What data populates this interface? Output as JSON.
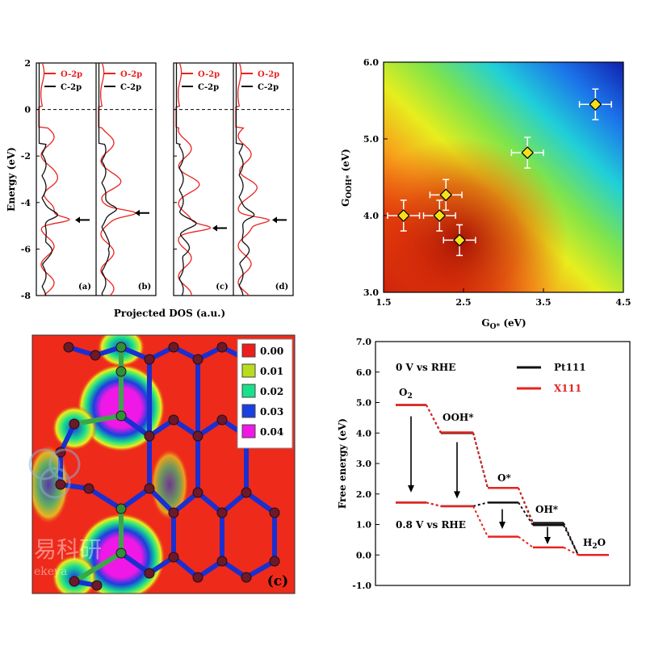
{
  "chart_data": [
    {
      "type": "line",
      "panel": "projected-dos",
      "xlabel": "Projected DOS (a.u.)",
      "ylabel": "Energy (eV)",
      "ylim": [
        -8,
        2
      ],
      "yticks": [
        "2",
        "0",
        "-2",
        "-4",
        "-6",
        "-8"
      ],
      "fermi_level": 0,
      "legend": [
        "O-2p",
        "C-2p"
      ],
      "series_colors": {
        "O-2p": "#e8231f",
        "C-2p": "#111111"
      },
      "subpanels": [
        {
          "label": "(a)",
          "arrow_energy": -4.75
        },
        {
          "label": "(b)",
          "arrow_energy": -4.45
        },
        {
          "label": "(c)",
          "arrow_energy": -5.1
        },
        {
          "label": "(d)",
          "arrow_energy": -4.75
        }
      ]
    },
    {
      "type": "scatter",
      "panel": "activity-map",
      "xlabel": "G",
      "xlabel_sub": "O*",
      "xlabel_unit": " (eV)",
      "ylabel": "G",
      "ylabel_sub": "OOH*",
      "ylabel_unit": " (eV)",
      "xlim": [
        1.5,
        4.5
      ],
      "ylim": [
        3.0,
        6.0
      ],
      "xticks": [
        "1.5",
        "2.5",
        "3.5",
        "4.5"
      ],
      "yticks": [
        "3.0",
        "4.0",
        "5.0",
        "6.0"
      ],
      "points": [
        {
          "x": 1.75,
          "y": 4.0,
          "xerr": 0.2,
          "yerr": 0.2
        },
        {
          "x": 2.2,
          "y": 4.0,
          "xerr": 0.2,
          "yerr": 0.2
        },
        {
          "x": 2.28,
          "y": 4.27,
          "xerr": 0.2,
          "yerr": 0.2
        },
        {
          "x": 2.45,
          "y": 3.68,
          "xerr": 0.2,
          "yerr": 0.2
        },
        {
          "x": 3.3,
          "y": 4.82,
          "xerr": 0.2,
          "yerr": 0.2
        },
        {
          "x": 4.15,
          "y": 5.45,
          "xerr": 0.2,
          "yerr": 0.2
        }
      ],
      "marker_color": "#f5e11a"
    },
    {
      "type": "heatmap",
      "panel": "density-map",
      "legend": [
        "0.00",
        "0.01",
        "0.02",
        "0.03",
        "0.04"
      ],
      "legend_colors": [
        "#ee1c1c",
        "#b9dc1f",
        "#19e08a",
        "#1a3fe0",
        "#f018e6"
      ],
      "label": "(c)"
    },
    {
      "type": "line",
      "panel": "free-energy",
      "ylabel": "Free energy (eV)",
      "ylim": [
        -1.0,
        7.0
      ],
      "yticks": [
        "7.0",
        "6.0",
        "5.0",
        "4.0",
        "3.0",
        "2.0",
        "1.0",
        "0.0",
        "-1.0"
      ],
      "categories": [
        "O2",
        "OOH*",
        "O*",
        "OH*",
        "H2O"
      ],
      "condition_labels": [
        "0 V vs RHE",
        "0.8 V vs RHE"
      ],
      "series": [
        {
          "name": "Pt111",
          "color": "#111111",
          "values_0V": [
            4.92,
            4.0,
            2.2,
            1.05,
            0.0
          ],
          "values_08V": [
            1.72,
            1.6,
            1.72,
            0.98,
            0.0
          ]
        },
        {
          "name": "X111",
          "color": "#e8231f",
          "values_0V": [
            4.92,
            4.02,
            2.2,
            0.98,
            0.0
          ],
          "values_08V": [
            1.72,
            1.6,
            0.6,
            0.25,
            0.0
          ]
        }
      ],
      "step_labels": [
        {
          "main": "O",
          "sub": "2"
        },
        {
          "main": "OOH*",
          "sub": ""
        },
        {
          "main": "O*",
          "sub": ""
        },
        {
          "main": "OH*",
          "sub": ""
        },
        {
          "main": "H",
          "sub": "2",
          "tail": "O"
        }
      ]
    }
  ],
  "watermark": {
    "text": "易科研",
    "subtext": "ekeya"
  }
}
